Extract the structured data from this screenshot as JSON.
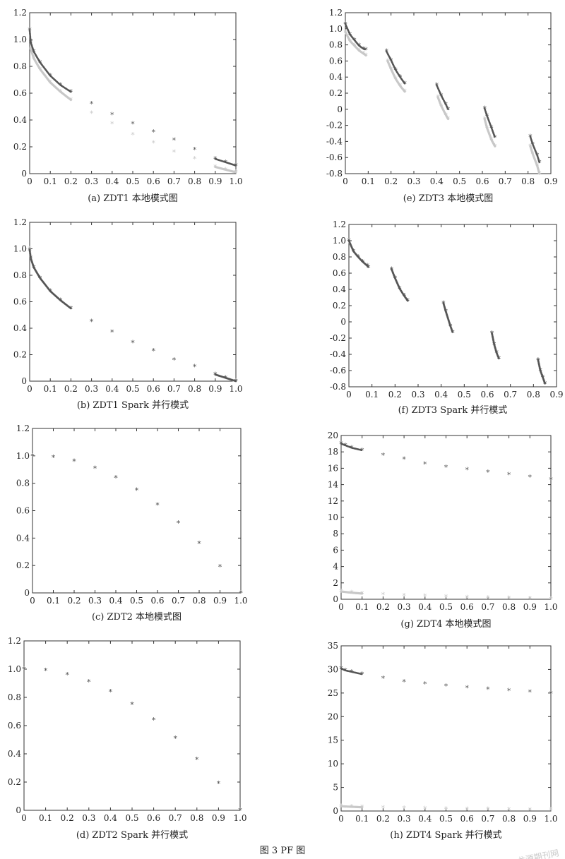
{
  "figure_caption": "图 3   PF 图",
  "watermark": "龙源期刊网",
  "colors": {
    "dark": "#555555",
    "light": "#c8c8c8",
    "axis": "#333333"
  },
  "chart_data": [
    {
      "id": "a",
      "type": "scatter",
      "caption": "(a) ZDT1 本地模式图",
      "xlim": [
        0,
        1.0
      ],
      "ylim": [
        0,
        1.2
      ],
      "xticks": [
        "0",
        "0.1",
        "0.2",
        "0.3",
        "0.4",
        "0.5",
        "0.6",
        "0.7",
        "0.8",
        "0.9",
        "1.0"
      ],
      "yticks": [
        "0",
        "0.2",
        "0.4",
        "0.6",
        "0.8",
        "1.0",
        "1.2"
      ],
      "series": [
        {
          "color": "#c8c8c8",
          "x": [
            0.005,
            0.02,
            0.05,
            0.1,
            0.15,
            0.2,
            0.3,
            0.4,
            0.5,
            0.6,
            0.7,
            0.8,
            0.9,
            0.95,
            1.0
          ],
          "y": [
            0.93,
            0.86,
            0.78,
            0.68,
            0.61,
            0.55,
            0.45,
            0.37,
            0.29,
            0.23,
            0.16,
            0.11,
            0.05,
            0.03,
            0.01
          ]
        },
        {
          "color": "#555555",
          "x": [
            0.0,
            0.005,
            0.02,
            0.05,
            0.1,
            0.15,
            0.2,
            0.3,
            0.4,
            0.5,
            0.6,
            0.7,
            0.8,
            0.9,
            0.95,
            1.0
          ],
          "y": [
            1.07,
            0.98,
            0.91,
            0.83,
            0.73,
            0.66,
            0.61,
            0.52,
            0.44,
            0.37,
            0.31,
            0.25,
            0.18,
            0.11,
            0.085,
            0.06
          ]
        }
      ]
    },
    {
      "id": "e",
      "type": "scatter",
      "caption": "(e) ZDT3 本地模式图",
      "xlim": [
        0,
        0.9
      ],
      "ylim": [
        -0.8,
        1.2
      ],
      "xticks": [
        "0",
        "0.1",
        "0.2",
        "0.3",
        "0.4",
        "0.5",
        "0.6",
        "0.7",
        "0.8",
        "0.9"
      ],
      "yticks": [
        "-0.8",
        "-0.6",
        "-0.4",
        "-0.2",
        "0",
        "0.2",
        "0.4",
        "0.6",
        "0.8",
        "1.0",
        "1.2"
      ],
      "series": [
        {
          "color": "#c8c8c8",
          "x": [
            0.0,
            0.02,
            0.04,
            0.06,
            0.08,
            0.09,
            0.185,
            0.2,
            0.22,
            0.24,
            0.26,
            0.405,
            0.42,
            0.44,
            0.45,
            0.61,
            0.62,
            0.64,
            0.655,
            0.81,
            0.82,
            0.84,
            0.85
          ],
          "y": [
            0.96,
            0.85,
            0.79,
            0.73,
            0.69,
            0.67,
            0.6,
            0.5,
            0.38,
            0.29,
            0.22,
            0.15,
            0.04,
            -0.07,
            -0.12,
            -0.12,
            -0.23,
            -0.38,
            -0.46,
            -0.46,
            -0.55,
            -0.7,
            -0.8
          ]
        },
        {
          "color": "#555555",
          "x": [
            0.0,
            0.02,
            0.04,
            0.06,
            0.08,
            0.09,
            0.18,
            0.2,
            0.22,
            0.24,
            0.26,
            0.4,
            0.42,
            0.44,
            0.45,
            0.61,
            0.62,
            0.64,
            0.655,
            0.81,
            0.82,
            0.84,
            0.85
          ],
          "y": [
            1.06,
            0.93,
            0.86,
            0.79,
            0.75,
            0.74,
            0.72,
            0.61,
            0.49,
            0.4,
            0.32,
            0.3,
            0.17,
            0.06,
            0.0,
            0.01,
            -0.08,
            -0.23,
            -0.35,
            -0.34,
            -0.43,
            -0.57,
            -0.66
          ]
        }
      ]
    },
    {
      "id": "b",
      "type": "scatter",
      "caption": "(b) ZDT1 Spark 并行模式",
      "xlim": [
        0,
        1.0
      ],
      "ylim": [
        0,
        1.2
      ],
      "xticks": [
        "0",
        "0.1",
        "0.2",
        "0.3",
        "0.4",
        "0.5",
        "0.6",
        "0.7",
        "0.8",
        "0.9",
        "1.0"
      ],
      "yticks": [
        "0",
        "0.2",
        "0.4",
        "0.6",
        "0.8",
        "1.0",
        "1.2"
      ],
      "series": [
        {
          "color": "#c8c8c8",
          "x": [
            0.0,
            0.005,
            0.02,
            0.05,
            0.1,
            0.15,
            0.2,
            0.3,
            0.4,
            0.5,
            0.6,
            0.7,
            0.8,
            0.9,
            0.95,
            1.0
          ],
          "y": [
            1.0,
            0.93,
            0.86,
            0.78,
            0.68,
            0.61,
            0.55,
            0.45,
            0.37,
            0.29,
            0.23,
            0.16,
            0.11,
            0.05,
            0.025,
            0.0
          ]
        },
        {
          "color": "#555555",
          "x": [
            0.0,
            0.005,
            0.02,
            0.05,
            0.1,
            0.15,
            0.2,
            0.3,
            0.4,
            0.5,
            0.6,
            0.7,
            0.8,
            0.9,
            0.95,
            1.0
          ],
          "y": [
            0.99,
            0.93,
            0.86,
            0.78,
            0.68,
            0.61,
            0.55,
            0.45,
            0.37,
            0.29,
            0.23,
            0.16,
            0.11,
            0.05,
            0.025,
            0.0
          ]
        }
      ]
    },
    {
      "id": "f",
      "type": "scatter",
      "caption": "(f) ZDT3 Spark 并行模式",
      "xlim": [
        0,
        0.9
      ],
      "ylim": [
        -0.8,
        1.2
      ],
      "xticks": [
        "0",
        "0.1",
        "0.2",
        "0.3",
        "0.4",
        "0.5",
        "0.6",
        "0.7",
        "0.8",
        "0.9"
      ],
      "yticks": [
        "-0.8",
        "-0.6",
        "-0.4",
        "-0.2",
        "0",
        "0.2",
        "0.4",
        "0.6",
        "0.8",
        "1.0",
        "1.2"
      ],
      "series": [
        {
          "color": "#c8c8c8",
          "x": [
            0.0,
            0.02,
            0.04,
            0.06,
            0.08,
            0.085,
            0.185,
            0.2,
            0.22,
            0.24,
            0.255,
            0.41,
            0.42,
            0.44,
            0.45,
            0.62,
            0.63,
            0.64,
            0.65,
            0.82,
            0.83,
            0.84,
            0.85
          ],
          "y": [
            1.0,
            0.87,
            0.8,
            0.74,
            0.69,
            0.67,
            0.65,
            0.54,
            0.41,
            0.32,
            0.26,
            0.23,
            0.13,
            -0.05,
            -0.13,
            -0.14,
            -0.28,
            -0.38,
            -0.45,
            -0.47,
            -0.6,
            -0.68,
            -0.76
          ]
        },
        {
          "color": "#555555",
          "x": [
            0.0,
            0.02,
            0.04,
            0.06,
            0.08,
            0.085,
            0.185,
            0.2,
            0.22,
            0.24,
            0.255,
            0.41,
            0.42,
            0.44,
            0.45,
            0.62,
            0.63,
            0.64,
            0.65,
            0.82,
            0.83,
            0.84,
            0.85
          ],
          "y": [
            1.0,
            0.87,
            0.8,
            0.74,
            0.69,
            0.67,
            0.65,
            0.54,
            0.41,
            0.32,
            0.26,
            0.23,
            0.13,
            -0.05,
            -0.13,
            -0.14,
            -0.28,
            -0.38,
            -0.45,
            -0.47,
            -0.6,
            -0.68,
            -0.76
          ]
        }
      ]
    },
    {
      "id": "c",
      "type": "scatter",
      "caption": "(c) ZDT2 本地模式图",
      "xlim": [
        0,
        1.0
      ],
      "ylim": [
        0,
        1.2
      ],
      "xticks": [
        "0",
        "0.1",
        "0.2",
        "0.3",
        "0.4",
        "0.5",
        "0.6",
        "0.7",
        "0.8",
        "0.9",
        "1.0"
      ],
      "yticks": [
        "0",
        "0.2",
        "0.4",
        "0.6",
        "0.8",
        "1.0",
        "1.2"
      ],
      "series": [
        {
          "color": "#c8c8c8",
          "x": [
            0.0,
            0.1,
            0.2,
            0.3,
            0.4,
            0.5,
            0.6,
            0.7,
            0.8,
            0.9,
            1.0
          ],
          "y": [
            1.0,
            0.99,
            0.96,
            0.91,
            0.84,
            0.75,
            0.64,
            0.51,
            0.36,
            0.19,
            0.0
          ]
        },
        {
          "color": "#555555",
          "x": [
            0.0,
            0.1,
            0.2,
            0.3,
            0.4,
            0.5,
            0.6,
            0.7,
            0.8,
            0.9,
            1.0
          ],
          "y": [
            1.0,
            0.99,
            0.96,
            0.91,
            0.84,
            0.75,
            0.64,
            0.51,
            0.36,
            0.19,
            0.0
          ]
        }
      ]
    },
    {
      "id": "g",
      "type": "scatter",
      "caption": "(g) ZDT4 本地模式图",
      "xlim": [
        0,
        1.0
      ],
      "ylim": [
        0,
        20
      ],
      "xticks": [
        "0",
        "0.1",
        "0.2",
        "0.3",
        "0.4",
        "0.5",
        "0.6",
        "0.7",
        "0.8",
        "0.9",
        "1.0"
      ],
      "yticks": [
        "0",
        "2",
        "4",
        "6",
        "8",
        "10",
        "12",
        "14",
        "16",
        "18",
        "20"
      ],
      "series": [
        {
          "color": "#c8c8c8",
          "x": [
            0.0,
            0.05,
            0.1,
            0.2,
            0.3,
            0.4,
            0.5,
            0.6,
            0.7,
            0.8,
            0.9,
            1.0
          ],
          "y": [
            0.95,
            0.8,
            0.7,
            0.55,
            0.45,
            0.37,
            0.3,
            0.23,
            0.17,
            0.11,
            0.05,
            0.0
          ]
        },
        {
          "color": "#555555",
          "x": [
            0.0,
            0.02,
            0.05,
            0.1,
            0.2,
            0.3,
            0.4,
            0.5,
            0.6,
            0.7,
            0.8,
            0.9,
            1.0
          ],
          "y": [
            19.0,
            18.8,
            18.5,
            18.2,
            17.6,
            17.1,
            16.5,
            16.1,
            15.8,
            15.5,
            15.2,
            14.9,
            14.6
          ]
        }
      ]
    },
    {
      "id": "d",
      "type": "scatter",
      "caption": "(d) ZDT2 Spark 并行模式",
      "xlim": [
        0,
        1.0
      ],
      "ylim": [
        0,
        1.2
      ],
      "xticks": [
        "0",
        "0.1",
        "0.2",
        "0.3",
        "0.4",
        "0.5",
        "0.6",
        "0.7",
        "0.8",
        "0.9",
        "1.0"
      ],
      "yticks": [
        "0",
        "0.2",
        "0.4",
        "0.6",
        "0.8",
        "1.0",
        "1.2"
      ],
      "series": [
        {
          "color": "#c8c8c8",
          "x": [
            0.0,
            0.1,
            0.2,
            0.3,
            0.4,
            0.5,
            0.6,
            0.7,
            0.8,
            0.9,
            1.0
          ],
          "y": [
            1.0,
            0.99,
            0.96,
            0.91,
            0.84,
            0.75,
            0.64,
            0.51,
            0.36,
            0.19,
            0.0
          ]
        },
        {
          "color": "#555555",
          "x": [
            0.0,
            0.1,
            0.2,
            0.3,
            0.4,
            0.5,
            0.6,
            0.7,
            0.8,
            0.9,
            1.0
          ],
          "y": [
            1.0,
            0.99,
            0.96,
            0.91,
            0.84,
            0.75,
            0.64,
            0.51,
            0.36,
            0.19,
            0.0
          ]
        }
      ]
    },
    {
      "id": "h",
      "type": "scatter",
      "caption": "(h) ZDT4 Spark 并行模式",
      "xlim": [
        0,
        1.0
      ],
      "ylim": [
        0,
        35
      ],
      "xticks": [
        "0",
        "0.1",
        "0.2",
        "0.3",
        "0.4",
        "0.5",
        "0.6",
        "0.7",
        "0.8",
        "0.9",
        "1.0"
      ],
      "yticks": [
        "0",
        "5",
        "10",
        "15",
        "20",
        "25",
        "30",
        "35"
      ],
      "series": [
        {
          "color": "#c8c8c8",
          "x": [
            0.0,
            0.05,
            0.1,
            0.2,
            0.3,
            0.4,
            0.5,
            0.6,
            0.7,
            0.8,
            0.9,
            1.0
          ],
          "y": [
            1.0,
            0.9,
            0.8,
            0.7,
            0.6,
            0.5,
            0.45,
            0.4,
            0.35,
            0.3,
            0.25,
            0.2
          ]
        },
        {
          "color": "#555555",
          "x": [
            0.0,
            0.02,
            0.05,
            0.1,
            0.2,
            0.3,
            0.4,
            0.5,
            0.6,
            0.7,
            0.8,
            0.9,
            1.0
          ],
          "y": [
            30.2,
            29.8,
            29.5,
            29.0,
            28.1,
            27.4,
            26.9,
            26.5,
            26.1,
            25.8,
            25.5,
            25.2,
            24.9
          ]
        }
      ]
    }
  ]
}
